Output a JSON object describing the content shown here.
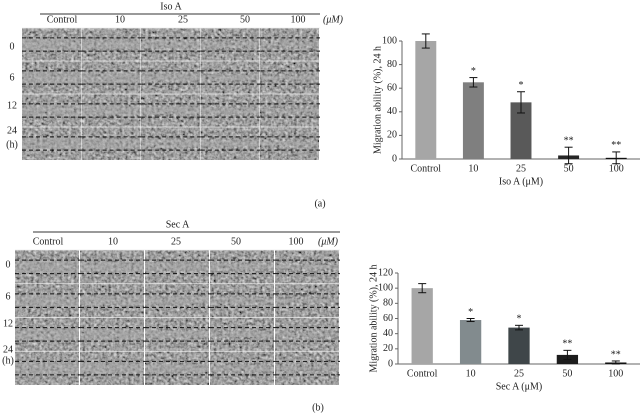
{
  "panels": [
    {
      "treatment": "Iso A",
      "columns": [
        "Control",
        "10",
        "25",
        "50",
        "100"
      ],
      "unit": "(μM)",
      "rows": [
        "0",
        "6",
        "12",
        "24"
      ],
      "row_unit": "(h)",
      "label": "(a)"
    },
    {
      "treatment": "Sec A",
      "columns": [
        "Control",
        "10",
        "25",
        "50",
        "100"
      ],
      "unit": "(μM)",
      "rows": [
        "0",
        "6",
        "12",
        "24"
      ],
      "row_unit": "(h)",
      "label": "(b)"
    }
  ],
  "chart_data": [
    {
      "type": "bar",
      "ylabel": "Migration ability (%), 24 h",
      "xlabel": "Iso A (μM)",
      "categories": [
        "Control",
        "10",
        "25",
        "50",
        "100"
      ],
      "values": [
        100,
        65,
        48,
        3,
        1
      ],
      "errors": [
        6,
        4,
        9,
        7,
        5
      ],
      "significance": [
        null,
        "*",
        "*",
        "**",
        "**"
      ],
      "colors": [
        "#a6a6a6",
        "#7f7f7f",
        "#595959",
        "#262626",
        "#111111"
      ],
      "ylim": [
        0,
        100
      ],
      "yticks": [
        0,
        20,
        40,
        60,
        80,
        100
      ]
    },
    {
      "type": "bar",
      "ylabel": "Migration ability (%), 24 h",
      "xlabel": "Sec A (μM)",
      "categories": [
        "Control",
        "10",
        "25",
        "50",
        "100"
      ],
      "values": [
        100,
        58,
        48,
        12,
        2
      ],
      "errors": [
        6,
        2,
        3,
        6,
        2
      ],
      "significance": [
        null,
        "*",
        "*",
        "**",
        "**"
      ],
      "colors": [
        "#a6a6a6",
        "#828b8e",
        "#3f4649",
        "#1c1c1c",
        "#111111"
      ],
      "ylim": [
        0,
        120
      ],
      "yticks": [
        0,
        20,
        40,
        60,
        80,
        100,
        120
      ]
    }
  ]
}
